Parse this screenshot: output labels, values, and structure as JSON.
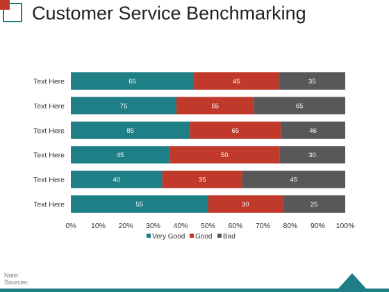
{
  "header": {
    "title": "Customer Service Benchmarking"
  },
  "colors": {
    "very_good": "#1f7f86",
    "good": "#c0392b",
    "bad": "#58585a",
    "accent": "#1f7f86"
  },
  "chart_data": {
    "type": "bar",
    "orientation": "horizontal",
    "stacked": true,
    "normalized": true,
    "title": "",
    "categories": [
      "Text Here",
      "Text Here",
      "Text Here",
      "Text Here",
      "Text Here",
      "Text Here"
    ],
    "series": [
      {
        "name": "Very Good",
        "color": "#1f7f86",
        "values": [
          65,
          75,
          85,
          45,
          40,
          55
        ]
      },
      {
        "name": "Good",
        "color": "#c0392b",
        "values": [
          45,
          55,
          65,
          50,
          35,
          30
        ]
      },
      {
        "name": "Bad",
        "color": "#58585a",
        "values": [
          35,
          65,
          46,
          30,
          45,
          25
        ]
      }
    ],
    "x_ticks": [
      "0%",
      "10%",
      "20%",
      "30%",
      "40%",
      "50%",
      "60%",
      "70%",
      "80%",
      "90%",
      "100%"
    ],
    "xlim": [
      0,
      100
    ],
    "grid": false,
    "legend_position": "bottom"
  },
  "footer": {
    "note": "Note:",
    "sources": "Sources:"
  }
}
